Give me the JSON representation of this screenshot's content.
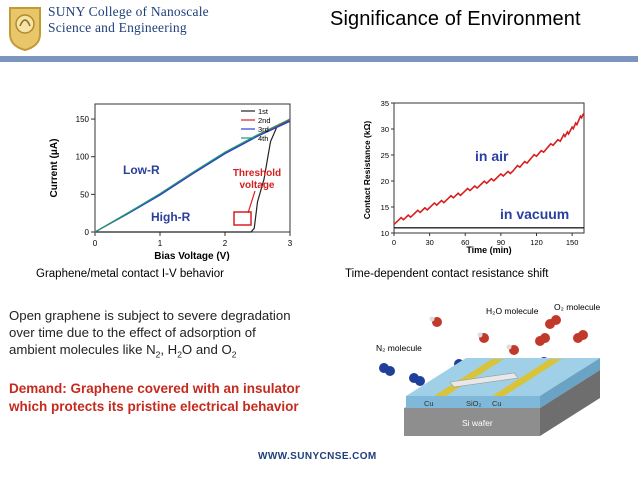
{
  "logo": {
    "line1": "SUNY College of Nanoscale",
    "line2": "Science and Engineering"
  },
  "title": "Significance of Environment",
  "iv_chart": {
    "ylabel": "Current (μA)",
    "xlabel": "Bias Voltage (V)",
    "yticks": [
      "0",
      "50",
      "100",
      "150"
    ],
    "xticks": [
      "0",
      "1",
      "2",
      "3"
    ],
    "legend": [
      "1st",
      "2nd",
      "3rd",
      "4th"
    ],
    "low_r": "Low-R",
    "high_r": "High-R",
    "threshold_line1": "Threshold",
    "threshold_line2": "voltage",
    "caption": "Graphene/metal contact I-V behavior"
  },
  "chart_data": [
    {
      "type": "line",
      "xlabel": "Bias Voltage (V)",
      "ylabel": "Current (μA)",
      "xlim": [
        0,
        3
      ],
      "ylim": [
        0,
        170
      ],
      "series": [
        {
          "name": "1st",
          "x": [
            0,
            0.5,
            1.0,
            1.5,
            2.0,
            2.2,
            2.4,
            2.45,
            2.5,
            2.6,
            2.7,
            2.8,
            3.0
          ],
          "y": [
            0,
            0,
            0,
            0,
            0,
            0,
            0,
            5,
            40,
            70,
            120,
            140,
            150
          ]
        },
        {
          "name": "2nd",
          "x": [
            0,
            0.5,
            1.0,
            1.5,
            2.0,
            2.5,
            3.0
          ],
          "y": [
            0,
            25,
            50,
            78,
            105,
            128,
            148
          ]
        },
        {
          "name": "3rd",
          "x": [
            0,
            0.5,
            1.0,
            1.5,
            2.0,
            2.5,
            3.0
          ],
          "y": [
            0,
            24,
            49,
            77,
            104,
            127,
            147
          ]
        },
        {
          "name": "4th",
          "x": [
            0,
            0.5,
            1.0,
            1.5,
            2.0,
            2.5,
            3.0
          ],
          "y": [
            0,
            25,
            51,
            79,
            106,
            129,
            150
          ]
        }
      ]
    },
    {
      "type": "line",
      "xlabel": "Time (min)",
      "ylabel": "Contact Resistance (kΩ)",
      "xlim": [
        0,
        160
      ],
      "ylim": [
        10,
        35
      ],
      "series": [
        {
          "name": "in air",
          "x": [
            0,
            20,
            40,
            60,
            80,
            100,
            120,
            140,
            150,
            160
          ],
          "y": [
            12,
            14,
            16,
            18,
            20,
            22,
            25,
            28,
            30,
            33
          ]
        },
        {
          "name": "in vacuum",
          "x": [
            0,
            40,
            80,
            120,
            160
          ],
          "y": [
            11,
            11,
            11,
            11,
            11
          ]
        }
      ]
    }
  ],
  "r_chart": {
    "ylabel": "Contact Resistance (kΩ)",
    "xlabel": "Time (min)",
    "yticks": [
      "10",
      "15",
      "20",
      "25",
      "30",
      "35"
    ],
    "xticks": [
      "0",
      "30",
      "60",
      "90",
      "120",
      "150"
    ],
    "label_air": "in air",
    "label_vacuum": "in vacuum",
    "caption": "Time-dependent contact resistance shift"
  },
  "body": {
    "line1": "Open graphene is subject to severe degradation",
    "line2": "over time due to the effect of adsorption of",
    "line3_prefix": "ambient molecules like N",
    "n_sub": "2",
    "line3_mid1": ", H",
    "h_sub": "2",
    "line3_mid2": "O and O",
    "o_sub": "2"
  },
  "demand": {
    "line1": "Demand: Graphene covered with an insulator",
    "line2": "which protects its pristine electrical behavior"
  },
  "diagram": {
    "h2o": "H₂O molecule",
    "o2": "O₂ molecule",
    "n2": "N₂ molecule",
    "cu1": "Cu",
    "sio2": "SiO₂",
    "cu2": "Cu",
    "si": "Si wafer"
  },
  "website": "WWW.SUNYCNSE.COM",
  "colors": {
    "accent": "#7a96be",
    "demand": "#c62a1e",
    "navy": "#1f3f7a"
  }
}
